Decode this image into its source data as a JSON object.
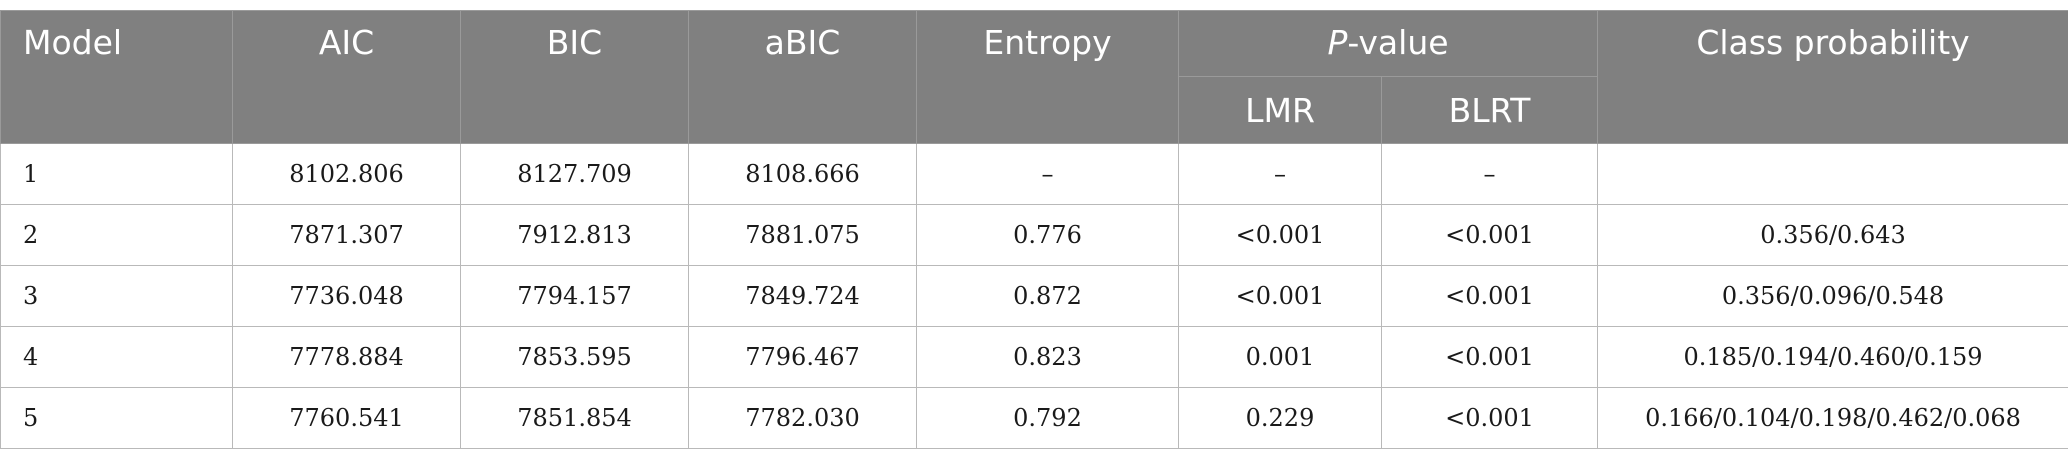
{
  "headers": {
    "model": "Model",
    "aic": "AIC",
    "bic": "BIC",
    "abic": "aBIC",
    "entropy": "Entropy",
    "p_value_italic": "P",
    "p_value_rest": "-value",
    "lmr": "LMR",
    "blrt": "BLRT",
    "class_probability": "Class probability"
  },
  "rows": [
    {
      "model": "1",
      "aic": "8102.806",
      "bic": "8127.709",
      "abic": "8108.666",
      "entropy": "–",
      "lmr": "–",
      "blrt": "–",
      "class_probability": ""
    },
    {
      "model": "2",
      "aic": "7871.307",
      "bic": "7912.813",
      "abic": "7881.075",
      "entropy": "0.776",
      "lmr": "<0.001",
      "blrt": "<0.001",
      "class_probability": "0.356/0.643"
    },
    {
      "model": "3",
      "aic": "7736.048",
      "bic": "7794.157",
      "abic": "7849.724",
      "entropy": "0.872",
      "lmr": "<0.001",
      "blrt": "<0.001",
      "class_probability": "0.356/0.096/0.548"
    },
    {
      "model": "4",
      "aic": "7778.884",
      "bic": "7853.595",
      "abic": "7796.467",
      "entropy": "0.823",
      "lmr": "0.001",
      "blrt": "<0.001",
      "class_probability": "0.185/0.194/0.460/0.159"
    },
    {
      "model": "5",
      "aic": "7760.541",
      "bic": "7851.854",
      "abic": "7782.030",
      "entropy": "0.792",
      "lmr": "0.229",
      "blrt": "<0.001",
      "class_probability": "0.166/0.104/0.198/0.462/0.068"
    }
  ],
  "colors": {
    "header_background": "#808080",
    "header_text": "#ffffff",
    "body_text": "#1a1a1a"
  }
}
